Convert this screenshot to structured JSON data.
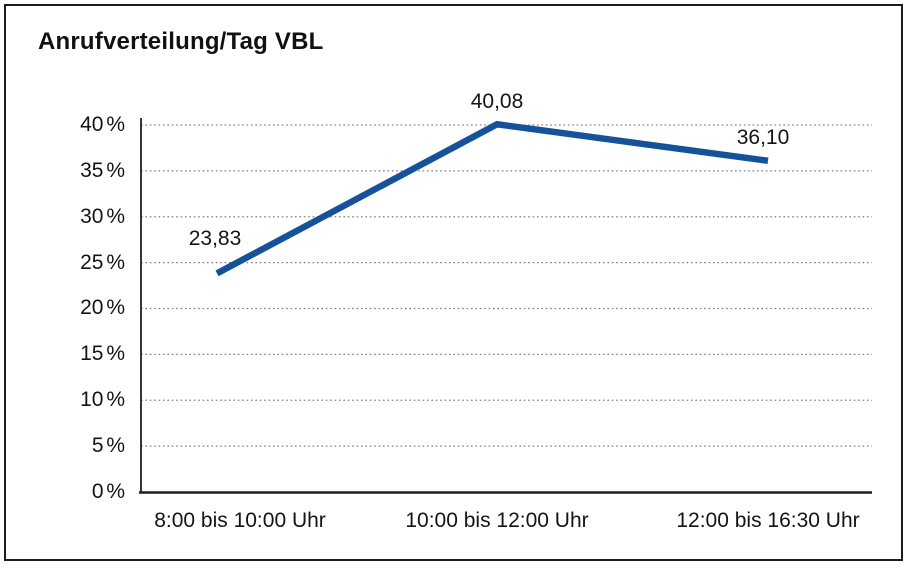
{
  "title": "Anrufverteilung/Tag VBL",
  "chart_data": {
    "type": "line",
    "title": "Anrufverteilung/Tag VBL",
    "categories": [
      "8:00 bis 10:00 Uhr",
      "10:00 bis 12:00 Uhr",
      "12:00 bis 16:30 Uhr"
    ],
    "values": [
      23.83,
      40.08,
      36.1
    ],
    "value_labels": [
      "23,83",
      "40,08",
      "36,10"
    ],
    "series_name": "Anrufverteilung",
    "xlabel": "",
    "ylabel": "",
    "ylim": [
      0,
      40
    ],
    "ytick_step": 5,
    "yticks_top_to_bottom": [
      "40 %",
      "35 %",
      "30 %",
      "25 %",
      "20 %",
      "15 %",
      "10 %",
      "5 %",
      "0 %"
    ],
    "grid": "horizontal-dotted",
    "legend_position": "none"
  },
  "colors": {
    "line": "#15529a",
    "grid": "#7f7f7f",
    "axis": "#1f1f1f",
    "text": "#141414",
    "border": "#1c1c1c",
    "background": "#ffffff"
  }
}
